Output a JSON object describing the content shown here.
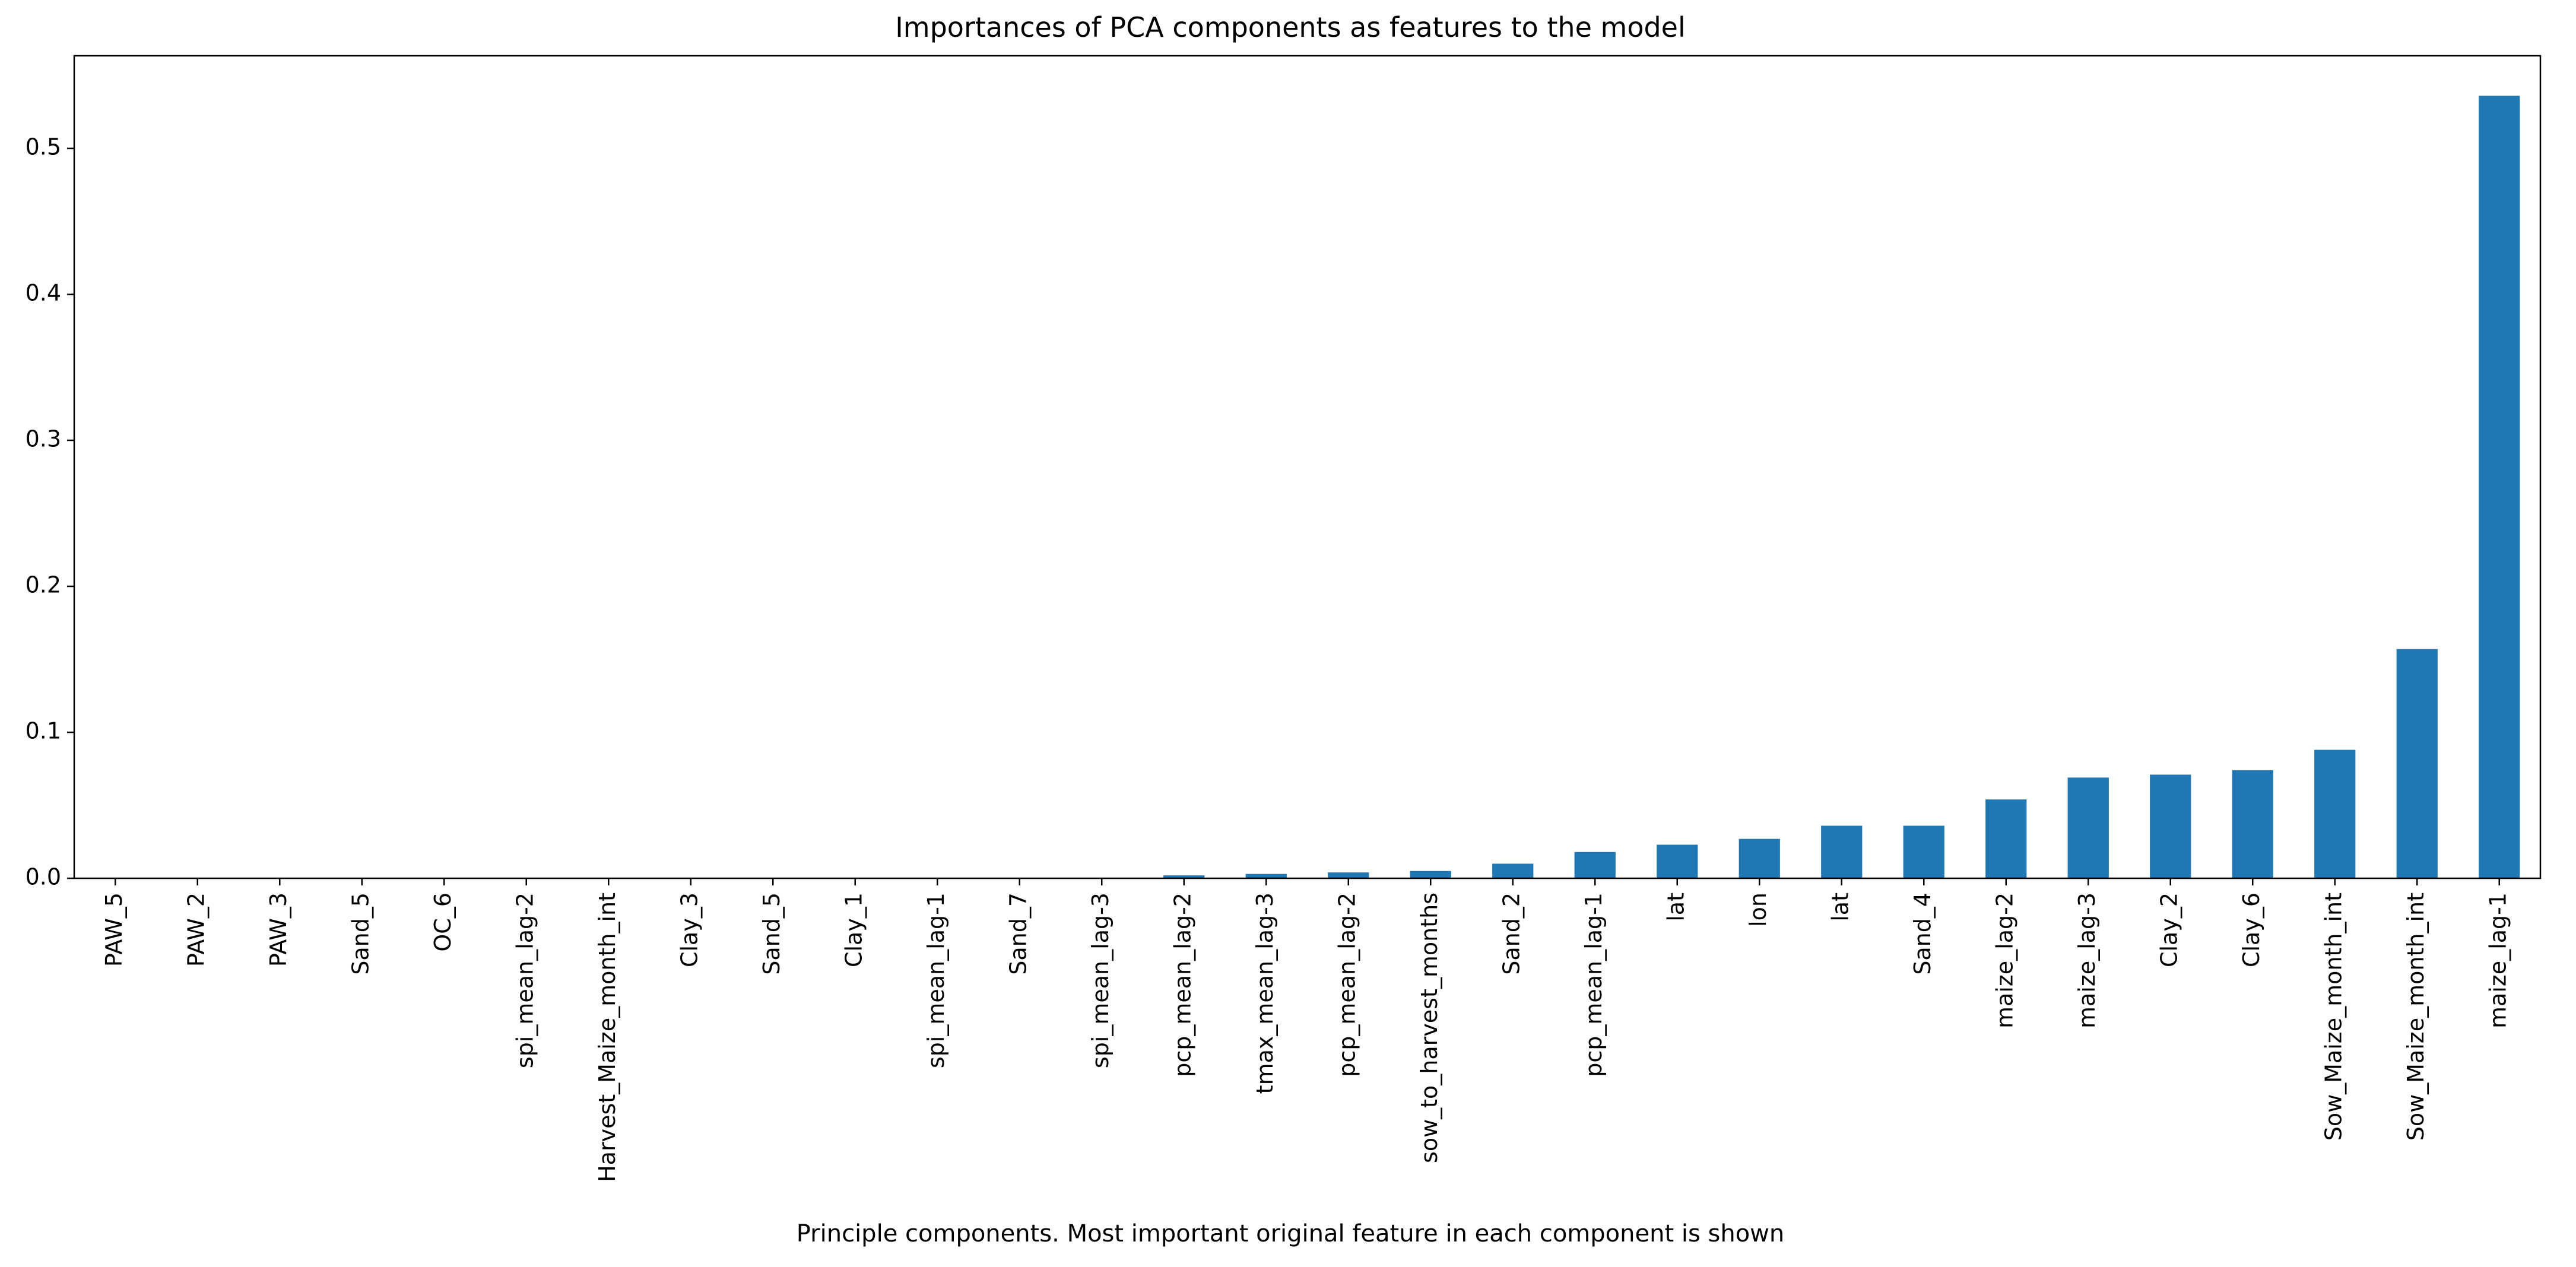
{
  "chart_data": {
    "type": "bar",
    "title": "Importances of PCA components as features to the model",
    "xlabel": "Principle components. Most important original feature in each component is shown",
    "ylabel": "",
    "ylim": [
      0,
      0.5634
    ],
    "yticks": [
      0.0,
      0.1,
      0.2,
      0.3,
      0.4,
      0.5
    ],
    "ytick_labels": [
      "0.0",
      "0.1",
      "0.2",
      "0.3",
      "0.4",
      "0.5"
    ],
    "grid": false,
    "bar_color": "#1f77b4",
    "categories": [
      "PAW_5",
      "PAW_2",
      "PAW_3",
      "Sand_5",
      "OC_6",
      "spi_mean_lag-2",
      "Harvest_Maize_month_int",
      "Clay_3",
      "Sand_5",
      "Clay_1",
      "spi_mean_lag-1",
      "Sand_7",
      "spi_mean_lag-3",
      "pcp_mean_lag-2",
      "tmax_mean_lag-3",
      "pcp_mean_lag-2",
      "sow_to_harvest_months",
      "Sand_2",
      "pcp_mean_lag-1",
      "lat",
      "lon",
      "lat",
      "Sand_4",
      "maize_lag-2",
      "maize_lag-3",
      "Clay_2",
      "Clay_6",
      "Sow_Maize_month_int",
      "Sow_Maize_month_int",
      "maize_lag-1"
    ],
    "values": [
      0.0,
      0.0,
      0.0,
      0.0,
      0.0,
      0.0,
      0.0,
      0.0,
      0.0,
      0.0,
      0.0,
      0.0,
      0.0,
      0.002,
      0.003,
      0.004,
      0.005,
      0.01,
      0.018,
      0.023,
      0.027,
      0.036,
      0.036,
      0.054,
      0.069,
      0.071,
      0.074,
      0.088,
      0.157,
      0.536
    ]
  }
}
